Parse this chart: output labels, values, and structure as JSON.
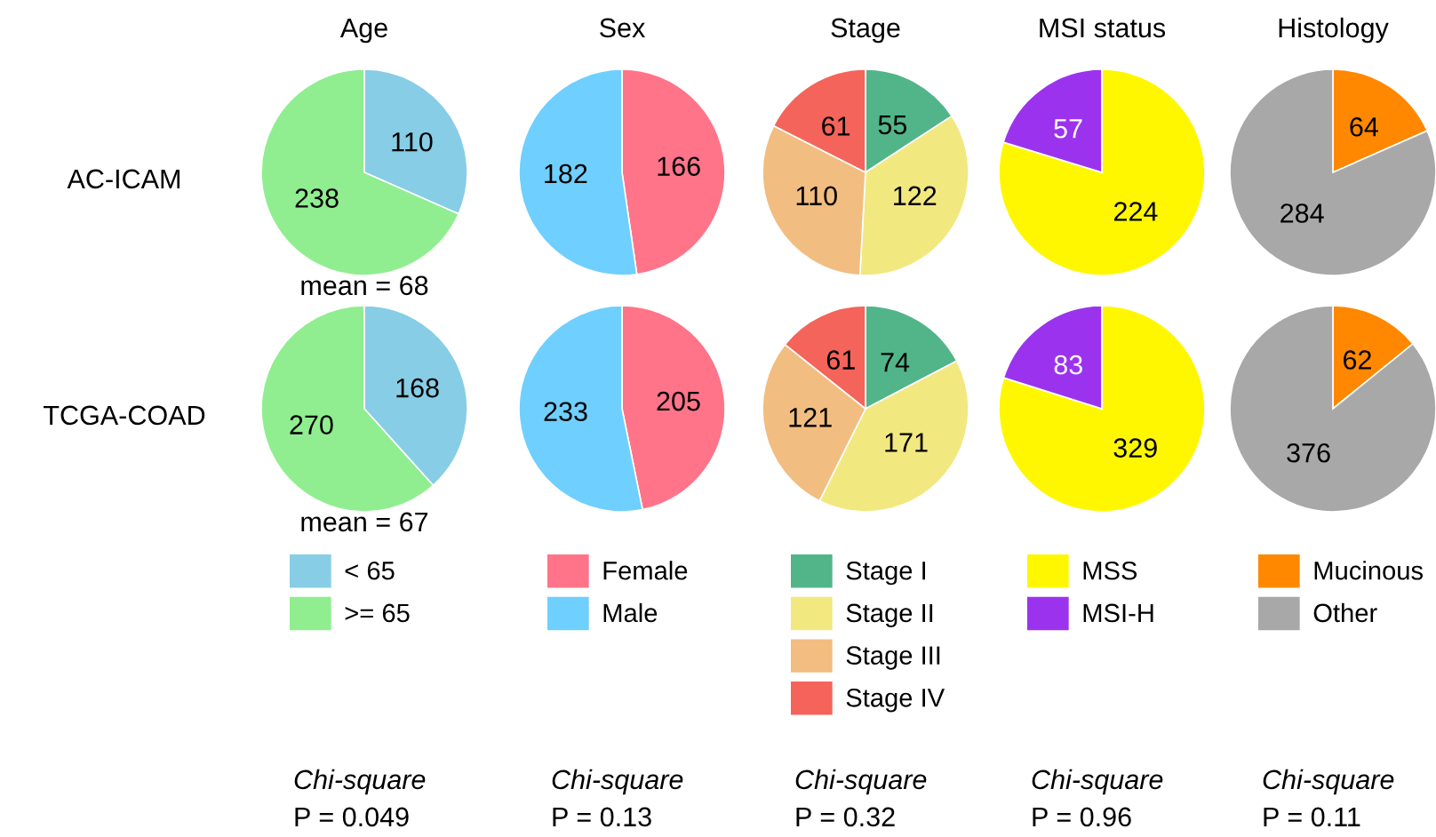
{
  "chart_data": [
    {
      "type": "pie",
      "title": "Age",
      "ylabel": "AC-ICAM",
      "categories": [
        null,
        null
      ],
      "values": [
        110,
        238
      ],
      "colors": [
        "#87cde6",
        "#90ee90"
      ],
      "data_labels": true,
      "annotations": [
        "mean = 68"
      ]
    },
    {
      "type": "pie",
      "title": "Sex",
      "categories": [
        null,
        null
      ],
      "values": [
        166,
        182
      ],
      "colors": [
        "#ff7489",
        "#6fcfff"
      ],
      "data_labels": true
    },
    {
      "type": "pie",
      "title": "Stage",
      "categories": [
        null,
        null,
        null,
        null
      ],
      "values": [
        55,
        122,
        110,
        61
      ],
      "colors": [
        "#52b58a",
        "#f2e880",
        "#f2bd80",
        "#f4645a"
      ],
      "data_labels": true
    },
    {
      "type": "pie",
      "title": "MSI status",
      "categories": [
        null,
        null
      ],
      "values": [
        224,
        57
      ],
      "colors": [
        "#fff700",
        "#9b33ee"
      ],
      "data_labels": true
    },
    {
      "type": "pie",
      "title": "Histology",
      "categories": [
        null,
        null
      ],
      "values": [
        64,
        284
      ],
      "colors": [
        "#ff8800",
        "#a8a8a8"
      ],
      "data_labels": true
    },
    {
      "type": "pie",
      "ylabel": "TCGA-COAD",
      "categories": [
        "< 65",
        ">= 65"
      ],
      "values": [
        168,
        270
      ],
      "colors": [
        "#87cde6",
        "#90ee90"
      ],
      "data_labels": true,
      "legend": "bottom",
      "annotations": [
        "mean = 67",
        "Chi-square\nP = 0.049"
      ]
    },
    {
      "type": "pie",
      "categories": [
        "Female",
        "Male"
      ],
      "values": [
        205,
        233
      ],
      "colors": [
        "#ff7489",
        "#6fcfff"
      ],
      "data_labels": true,
      "legend": "bottom",
      "annotations": [
        "Chi-square\nP = 0.13"
      ]
    },
    {
      "type": "pie",
      "categories": [
        "Stage I",
        "Stage II",
        "Stage III",
        "Stage IV"
      ],
      "values": [
        74,
        171,
        121,
        61
      ],
      "colors": [
        "#52b58a",
        "#f2e880",
        "#f2bd80",
        "#f4645a"
      ],
      "data_labels": true,
      "legend": "bottom",
      "annotations": [
        "Chi-square\nP = 0.32"
      ]
    },
    {
      "type": "pie",
      "categories": [
        "MSS",
        "MSI-H"
      ],
      "values": [
        329,
        83
      ],
      "colors": [
        "#fff700",
        "#9b33ee"
      ],
      "data_labels": true,
      "legend": "bottom",
      "annotations": [
        "Chi-square\nP = 0.96"
      ]
    },
    {
      "type": "pie",
      "categories": [
        "Mucinous",
        "Other"
      ],
      "values": [
        62,
        376
      ],
      "colors": [
        "#ff8800",
        "#a8a8a8"
      ],
      "data_labels": true,
      "legend": "bottom",
      "annotations": [
        "Chi-square\nP = 0.11"
      ]
    }
  ]
}
